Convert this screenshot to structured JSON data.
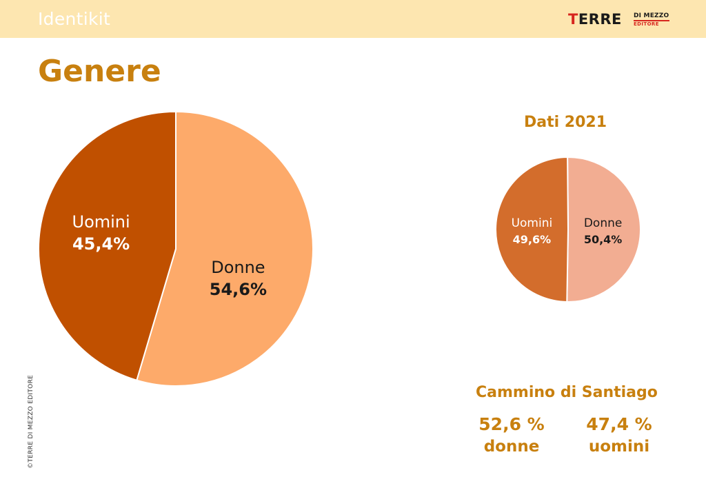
{
  "header": {
    "section_label": "Identikit",
    "logo": {
      "main": "TERRE",
      "top": "DI MEZZO",
      "bottom": "EDITORE"
    }
  },
  "page_title": "Genere",
  "copyright": "©TERRE DI MEZZO EDITORE",
  "colors": {
    "accent": "#c8800f",
    "header_bg": "#fde6b0",
    "big_uomini": "#c05000",
    "big_donne": "#fdaa6a",
    "small_uomini": "#d36d2c",
    "small_donne": "#f2ad92"
  },
  "chart_data": [
    {
      "type": "pie",
      "title": "",
      "labels": [
        "Donne",
        "Uomini"
      ],
      "values": [
        54.6,
        45.4
      ],
      "value_labels": [
        "54,6%",
        "45,4%"
      ],
      "colors": [
        "#fdaa6a",
        "#c05000"
      ]
    },
    {
      "type": "pie",
      "title": "Dati 2021",
      "labels": [
        "Donne",
        "Uomini"
      ],
      "values": [
        50.4,
        49.6
      ],
      "value_labels": [
        "50,4%",
        "49,6%"
      ],
      "colors": [
        "#f2ad92",
        "#d36d2c"
      ]
    }
  ],
  "cammino": {
    "title": "Cammino di Santiago",
    "donne": {
      "value": "52,6 %",
      "label": "donne"
    },
    "uomini": {
      "value": "47,4 %",
      "label": "uomini"
    }
  }
}
